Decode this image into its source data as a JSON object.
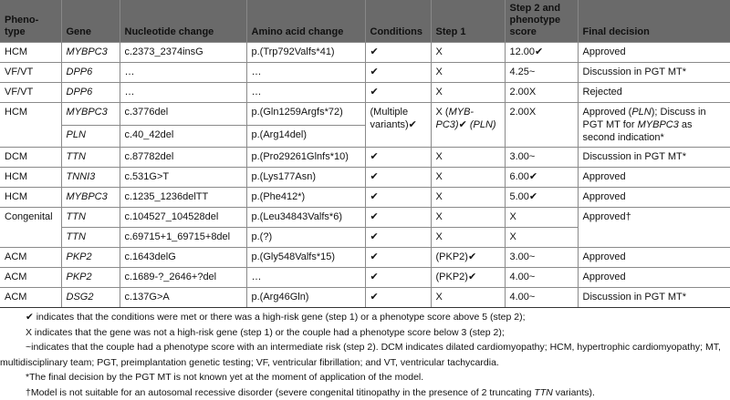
{
  "columns": [
    "Pheno-type",
    "Gene",
    "Nucleotide change",
    "Amino acid change",
    "Conditions",
    "Step 1",
    "Step 2 and phenotype score",
    "Final decision"
  ],
  "rows": [
    {
      "cells": [
        [
          {
            "t": "HCM"
          }
        ],
        [
          {
            "t": "MYBPC3",
            "i": 1
          }
        ],
        [
          {
            "t": "c.2373_2374insG"
          }
        ],
        [
          {
            "t": "p.(Trp792Valfs*41)"
          }
        ],
        [
          {
            "t": "✔"
          }
        ],
        [
          {
            "t": "X"
          }
        ],
        [
          {
            "t": "12.00✔"
          }
        ],
        [
          {
            "t": "Approved"
          }
        ]
      ]
    },
    {
      "cells": [
        [
          {
            "t": "VF/VT"
          }
        ],
        [
          {
            "t": "DPP6",
            "i": 1
          }
        ],
        [
          {
            "t": "…"
          }
        ],
        [
          {
            "t": "…"
          }
        ],
        [
          {
            "t": "✔"
          }
        ],
        [
          {
            "t": "X"
          }
        ],
        [
          {
            "t": "4.25~"
          }
        ],
        [
          {
            "t": "Discussion in PGT MT*"
          }
        ]
      ]
    },
    {
      "cells": [
        [
          {
            "t": "VF/VT"
          }
        ],
        [
          {
            "t": "DPP6",
            "i": 1
          }
        ],
        [
          {
            "t": "…"
          }
        ],
        [
          {
            "t": "…"
          }
        ],
        [
          {
            "t": "✔"
          }
        ],
        [
          {
            "t": "X"
          }
        ],
        [
          {
            "t": "2.00X"
          }
        ],
        [
          {
            "t": "Rejected"
          }
        ]
      ]
    },
    {
      "span": [
        0,
        4,
        5,
        6,
        7
      ],
      "cells": [
        [
          {
            "t": "HCM"
          }
        ],
        [
          {
            "t": "MYBPC3",
            "i": 1
          }
        ],
        [
          {
            "t": "c.3776del"
          }
        ],
        [
          {
            "t": "p.(Gln1259Argfs*72)"
          }
        ],
        [
          {
            "t": "(Multiple variants)✔"
          }
        ],
        [
          {
            "t": "X ("
          },
          {
            "t": "MYB-PC3)",
            "i": 1
          },
          {
            "t": "✔ "
          },
          {
            "t": "(PLN)",
            "i": 1
          }
        ],
        [
          {
            "t": "2.00X"
          }
        ],
        [
          {
            "t": "Approved ("
          },
          {
            "t": "PLN",
            "i": 1
          },
          {
            "t": "); Discuss in PGT MT for "
          },
          {
            "t": "MYBPC3",
            "i": 1
          },
          {
            "t": " as second indication*"
          }
        ]
      ]
    },
    {
      "sub": 1,
      "cells": [
        [
          {
            "t": "PLN",
            "i": 1
          }
        ],
        [
          {
            "t": "c.40_42del"
          }
        ],
        [
          {
            "t": "p.(Arg14del)"
          }
        ]
      ]
    },
    {
      "cells": [
        [
          {
            "t": "DCM"
          }
        ],
        [
          {
            "t": "TTN",
            "i": 1
          }
        ],
        [
          {
            "t": "c.87782del"
          }
        ],
        [
          {
            "t": "p.(Pro29261Glnfs*10)"
          }
        ],
        [
          {
            "t": "✔"
          }
        ],
        [
          {
            "t": "X"
          }
        ],
        [
          {
            "t": "3.00~"
          }
        ],
        [
          {
            "t": "Discussion in PGT MT*"
          }
        ]
      ]
    },
    {
      "cells": [
        [
          {
            "t": "HCM"
          }
        ],
        [
          {
            "t": "TNNI3",
            "i": 1
          }
        ],
        [
          {
            "t": "c.531G>T"
          }
        ],
        [
          {
            "t": "p.(Lys177Asn)"
          }
        ],
        [
          {
            "t": "✔"
          }
        ],
        [
          {
            "t": "X"
          }
        ],
        [
          {
            "t": "6.00✔"
          }
        ],
        [
          {
            "t": "Approved"
          }
        ]
      ]
    },
    {
      "cells": [
        [
          {
            "t": "HCM"
          }
        ],
        [
          {
            "t": "MYBPC3",
            "i": 1
          }
        ],
        [
          {
            "t": "c.1235_1236delTT"
          }
        ],
        [
          {
            "t": "p.(Phe412*)"
          }
        ],
        [
          {
            "t": "✔"
          }
        ],
        [
          {
            "t": "X"
          }
        ],
        [
          {
            "t": "5.00✔"
          }
        ],
        [
          {
            "t": "Approved"
          }
        ]
      ]
    },
    {
      "span": [
        0,
        7
      ],
      "cells": [
        [
          {
            "t": "Congenital"
          }
        ],
        [
          {
            "t": "TTN",
            "i": 1
          }
        ],
        [
          {
            "t": "c.104527_104528del"
          }
        ],
        [
          {
            "t": "p.(Leu34843Valfs*6)"
          }
        ],
        [
          {
            "t": "✔"
          }
        ],
        [
          {
            "t": "X"
          }
        ],
        [
          {
            "t": "X"
          }
        ],
        [
          {
            "t": "Approved†"
          }
        ]
      ]
    },
    {
      "sub": 1,
      "cells": [
        [
          {
            "t": "TTN",
            "i": 1
          }
        ],
        [
          {
            "t": "c.69715+1_69715+8del"
          }
        ],
        [
          {
            "t": "p.(?)"
          }
        ],
        [
          {
            "t": "✔"
          }
        ],
        [
          {
            "t": "X"
          }
        ],
        [
          {
            "t": "X"
          }
        ]
      ]
    },
    {
      "cells": [
        [
          {
            "t": "ACM"
          }
        ],
        [
          {
            "t": "PKP2",
            "i": 1
          }
        ],
        [
          {
            "t": "c.1643delG"
          }
        ],
        [
          {
            "t": "p.(Gly548Valfs*15)"
          }
        ],
        [
          {
            "t": "✔"
          }
        ],
        [
          {
            "t": "(PKP2)✔"
          }
        ],
        [
          {
            "t": "3.00~"
          }
        ],
        [
          {
            "t": "Approved"
          }
        ]
      ]
    },
    {
      "cells": [
        [
          {
            "t": "ACM"
          }
        ],
        [
          {
            "t": "PKP2",
            "i": 1
          }
        ],
        [
          {
            "t": "c.1689-?_2646+?del"
          }
        ],
        [
          {
            "t": "…"
          }
        ],
        [
          {
            "t": "✔"
          }
        ],
        [
          {
            "t": "(PKP2)✔"
          }
        ],
        [
          {
            "t": "4.00~"
          }
        ],
        [
          {
            "t": "Approved"
          }
        ]
      ]
    },
    {
      "cells": [
        [
          {
            "t": "ACM"
          }
        ],
        [
          {
            "t": "DSG2",
            "i": 1
          }
        ],
        [
          {
            "t": "c.137G>A"
          }
        ],
        [
          {
            "t": "p.(Arg46Gln)"
          }
        ],
        [
          {
            "t": "✔"
          }
        ],
        [
          {
            "t": "X"
          }
        ],
        [
          {
            "t": "4.00~"
          }
        ],
        [
          {
            "t": "Discussion in PGT MT*"
          }
        ]
      ]
    }
  ],
  "footnotes": [
    [
      {
        "t": "✔ indicates that the conditions were met or there was a high-risk gene (step 1) or a phenotype score above 5 (step 2);"
      }
    ],
    [
      {
        "t": "X indicates that the gene was not a high-risk gene (step 1) or the couple had a phenotype score below 3 (step 2);"
      }
    ],
    [
      {
        "t": "~indicates that the couple had a phenotype score with an intermediate risk (step 2). DCM indicates dilated cardiomyopathy; HCM, hypertrophic cardiomyopathy; MT,"
      }
    ],
    [
      {
        "t": "multidisciplinary team; PGT, preimplantation genetic testing; VF, ventricular fibrillation; and VT, ventricular tachycardia."
      }
    ],
    [
      {
        "t": "*The final decision by the PGT MT is not known yet at the moment of application of the model."
      }
    ],
    [
      {
        "t": "†Model is not suitable for an autosomal recessive disorder (severe congenital titinopathy in the presence of 2 truncating "
      },
      {
        "t": "TTN",
        "i": 1
      },
      {
        "t": " variants)."
      }
    ]
  ]
}
